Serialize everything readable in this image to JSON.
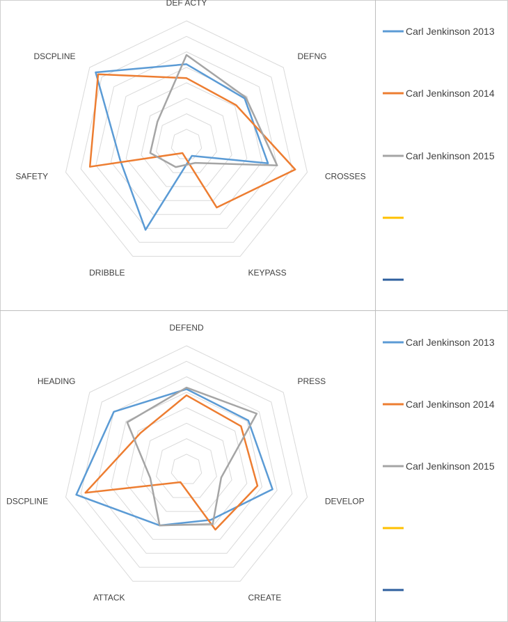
{
  "chart_data": [
    {
      "type": "radar",
      "axes": [
        "DEF ACTY",
        "DEFNG",
        "CROSSES",
        "KEYPASS",
        "DRIBBLE",
        "SAFETY",
        "DSCPLINE"
      ],
      "rings": 8,
      "grid": true,
      "legend_position": "right",
      "series": [
        {
          "name": "Carl Jenkinson 2013",
          "color": "#5B9BD5",
          "values": [
            5.2,
            4.8,
            5.4,
            0.8,
            6.1,
            4.4,
            7.5
          ]
        },
        {
          "name": "Carl Jenkinson 2014",
          "color": "#ED7D31",
          "values": [
            4.3,
            4.1,
            7.2,
            4.5,
            0.6,
            6.4,
            7.3
          ]
        },
        {
          "name": "Carl Jenkinson 2015",
          "color": "#A5A5A5",
          "values": [
            5.8,
            4.9,
            6.0,
            1.3,
            1.6,
            2.4,
            2.4
          ]
        },
        {
          "name": "",
          "color": "#FFC000",
          "values": []
        },
        {
          "name": "",
          "color": "#2E5F9E",
          "values": []
        }
      ]
    },
    {
      "type": "radar",
      "axes": [
        "DEFEND",
        "PRESS",
        "DEVELOP",
        "CREATE",
        "ATTACK",
        "DSCPLINE",
        "HEADING"
      ],
      "rings": 8,
      "grid": true,
      "legend_position": "right",
      "series": [
        {
          "name": "Carl Jenkinson 2013",
          "color": "#5B9BD5",
          "values": [
            5.2,
            5.1,
            5.7,
            3.6,
            4.0,
            7.3,
            6.0
          ]
        },
        {
          "name": "Carl Jenkinson 2014",
          "color": "#ED7D31",
          "values": [
            4.8,
            4.5,
            4.7,
            4.3,
            0.9,
            6.7,
            3.8
          ]
        },
        {
          "name": "Carl Jenkinson 2015",
          "color": "#A5A5A5",
          "values": [
            5.3,
            5.8,
            2.3,
            3.9,
            4.0,
            2.4,
            4.9
          ]
        },
        {
          "name": "",
          "color": "#FFC000",
          "values": []
        },
        {
          "name": "",
          "color": "#2E5F9E",
          "values": []
        }
      ]
    }
  ]
}
